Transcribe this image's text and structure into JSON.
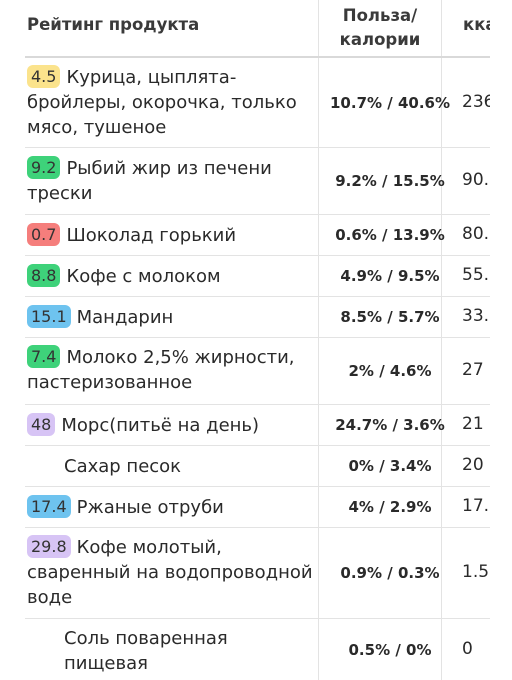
{
  "header": {
    "rating_col": "Рейтинг продукта",
    "ratio_col_line1": "Польза/",
    "ratio_col_line2": "калории",
    "kcal_col": "кка"
  },
  "rows": [
    {
      "badge": "4.5",
      "badge_color": "#fbe38c",
      "name": "Курица, цыплята-бройлеры, окорочка, только мясо, тушеное",
      "ratio": "10.7% / 40.6%",
      "kcal": "236"
    },
    {
      "badge": "9.2",
      "badge_color": "#3ed27a",
      "name": "Рыбий жир из печени трески",
      "ratio": "9.2% / 15.5%",
      "kcal": "90."
    },
    {
      "badge": "0.7",
      "badge_color": "#f57e7c",
      "name": "Шоколад горький",
      "ratio": "0.6% / 13.9%",
      "kcal": "80."
    },
    {
      "badge": "8.8",
      "badge_color": "#3ed27a",
      "name": "Кофе с молоком",
      "ratio": "4.9% / 9.5%",
      "kcal": "55."
    },
    {
      "badge": "15.1",
      "badge_color": "#6ec3ef",
      "name": "Мандарин",
      "ratio": "8.5% / 5.7%",
      "kcal": "33."
    },
    {
      "badge": "7.4",
      "badge_color": "#3ed27a",
      "name": "Молоко 2,5% жирности, пастеризованное",
      "ratio": "2% / 4.6%",
      "kcal": "27"
    },
    {
      "badge": "48",
      "badge_color": "#d7c4f5",
      "name": "Морс(питьё на день)",
      "ratio": "24.7% / 3.6%",
      "kcal": "21"
    },
    {
      "badge": "",
      "badge_color": "",
      "name": "Сахар песок",
      "ratio": "0% / 3.4%",
      "kcal": "20"
    },
    {
      "badge": "17.4",
      "badge_color": "#6ec3ef",
      "name": "Ржаные отруби",
      "ratio": "4% / 2.9%",
      "kcal": "17."
    },
    {
      "badge": "29.8",
      "badge_color": "#d7c4f5",
      "name": "Кофе молотый, сваренный на водопроводной воде",
      "ratio": "0.9% / 0.3%",
      "kcal": "1.5"
    },
    {
      "badge": "",
      "badge_color": "",
      "name": "Соль поваренная пищевая",
      "ratio": "0.5% / 0%",
      "kcal": "0"
    }
  ]
}
